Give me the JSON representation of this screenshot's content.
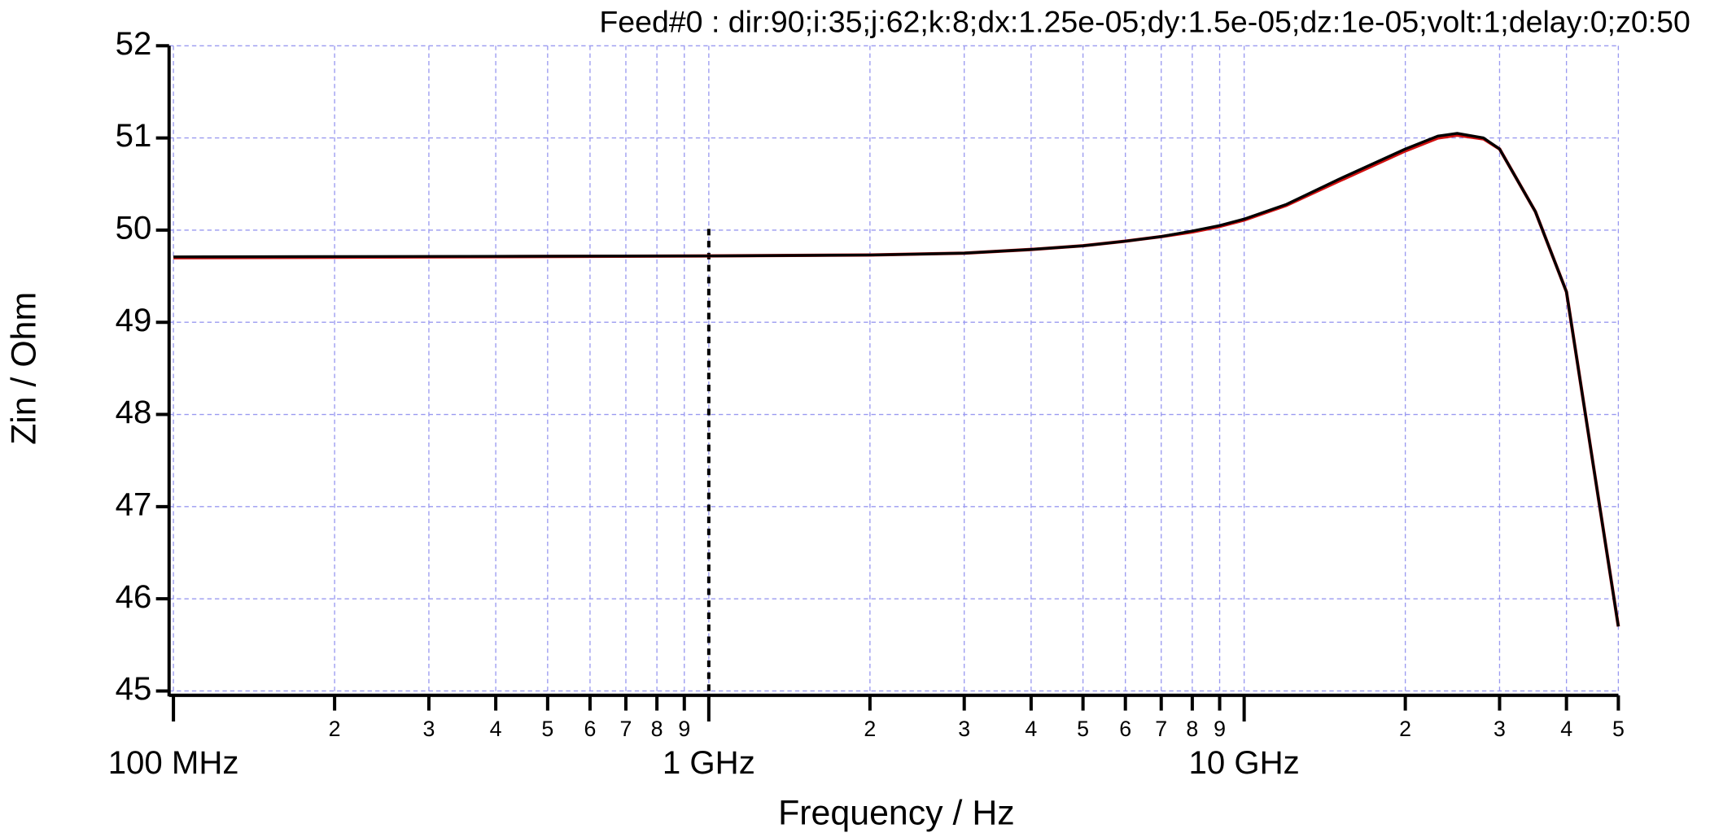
{
  "chart_data": {
    "type": "line",
    "title": "Feed#0 : dir:90;i:35;j:62;k:8;dx:1.25e-05;dy:1.5e-05;dz:1e-05;volt:1;delay:0;z0:50",
    "x_label": "Frequency / Hz",
    "y_label": "Zin / Ohm",
    "xscale": "log",
    "grid": true,
    "grid_color": "#9a9af0",
    "xlim": [
      100000000,
      50000000000
    ],
    "ylim": [
      45,
      52
    ],
    "yticks": [
      45,
      46,
      47,
      48,
      49,
      50,
      51,
      52
    ],
    "xticks": [
      {
        "value": 100000000,
        "label": "100 MHz"
      },
      {
        "value": 200000000,
        "label": "2"
      },
      {
        "value": 300000000,
        "label": "3"
      },
      {
        "value": 400000000,
        "label": "4"
      },
      {
        "value": 500000000,
        "label": "5"
      },
      {
        "value": 600000000,
        "label": "6"
      },
      {
        "value": 700000000,
        "label": "7"
      },
      {
        "value": 800000000,
        "label": "8"
      },
      {
        "value": 900000000,
        "label": "9"
      },
      {
        "value": 1000000000,
        "label": "1 GHz"
      },
      {
        "value": 2000000000,
        "label": "2"
      },
      {
        "value": 3000000000,
        "label": "3"
      },
      {
        "value": 4000000000,
        "label": "4"
      },
      {
        "value": 5000000000,
        "label": "5"
      },
      {
        "value": 6000000000,
        "label": "6"
      },
      {
        "value": 7000000000,
        "label": "7"
      },
      {
        "value": 8000000000,
        "label": "8"
      },
      {
        "value": 9000000000,
        "label": "9"
      },
      {
        "value": 10000000000,
        "label": "10 GHz"
      },
      {
        "value": 20000000000,
        "label": "2"
      },
      {
        "value": 30000000000,
        "label": "3"
      },
      {
        "value": 40000000000,
        "label": "4"
      },
      {
        "value": 50000000000,
        "label": "5"
      }
    ],
    "vline": 1000000000,
    "vline_color": "#000000",
    "x": [
      100000000,
      1000000000,
      2000000000,
      3000000000,
      4000000000,
      5000000000,
      6000000000,
      7000000000,
      8000000000,
      9000000000,
      10000000000,
      12000000000,
      15000000000,
      20000000000,
      23000000000,
      25000000000,
      28000000000,
      30000000000,
      35000000000,
      40000000000,
      45000000000,
      50000000000
    ],
    "series": [
      {
        "color": "#d01010",
        "values": [
          49.7,
          49.72,
          49.73,
          49.75,
          49.79,
          49.83,
          49.88,
          49.93,
          49.98,
          50.04,
          50.11,
          50.27,
          50.53,
          50.86,
          51.0,
          51.03,
          50.99,
          50.88,
          50.2,
          49.33,
          47.41,
          45.7
        ]
      },
      {
        "color": "#000000",
        "values": [
          49.71,
          49.72,
          49.73,
          49.75,
          49.79,
          49.83,
          49.88,
          49.93,
          49.99,
          50.05,
          50.12,
          50.28,
          50.55,
          50.88,
          51.02,
          51.05,
          51.0,
          50.88,
          50.2,
          49.33,
          47.41,
          45.7
        ]
      }
    ]
  }
}
